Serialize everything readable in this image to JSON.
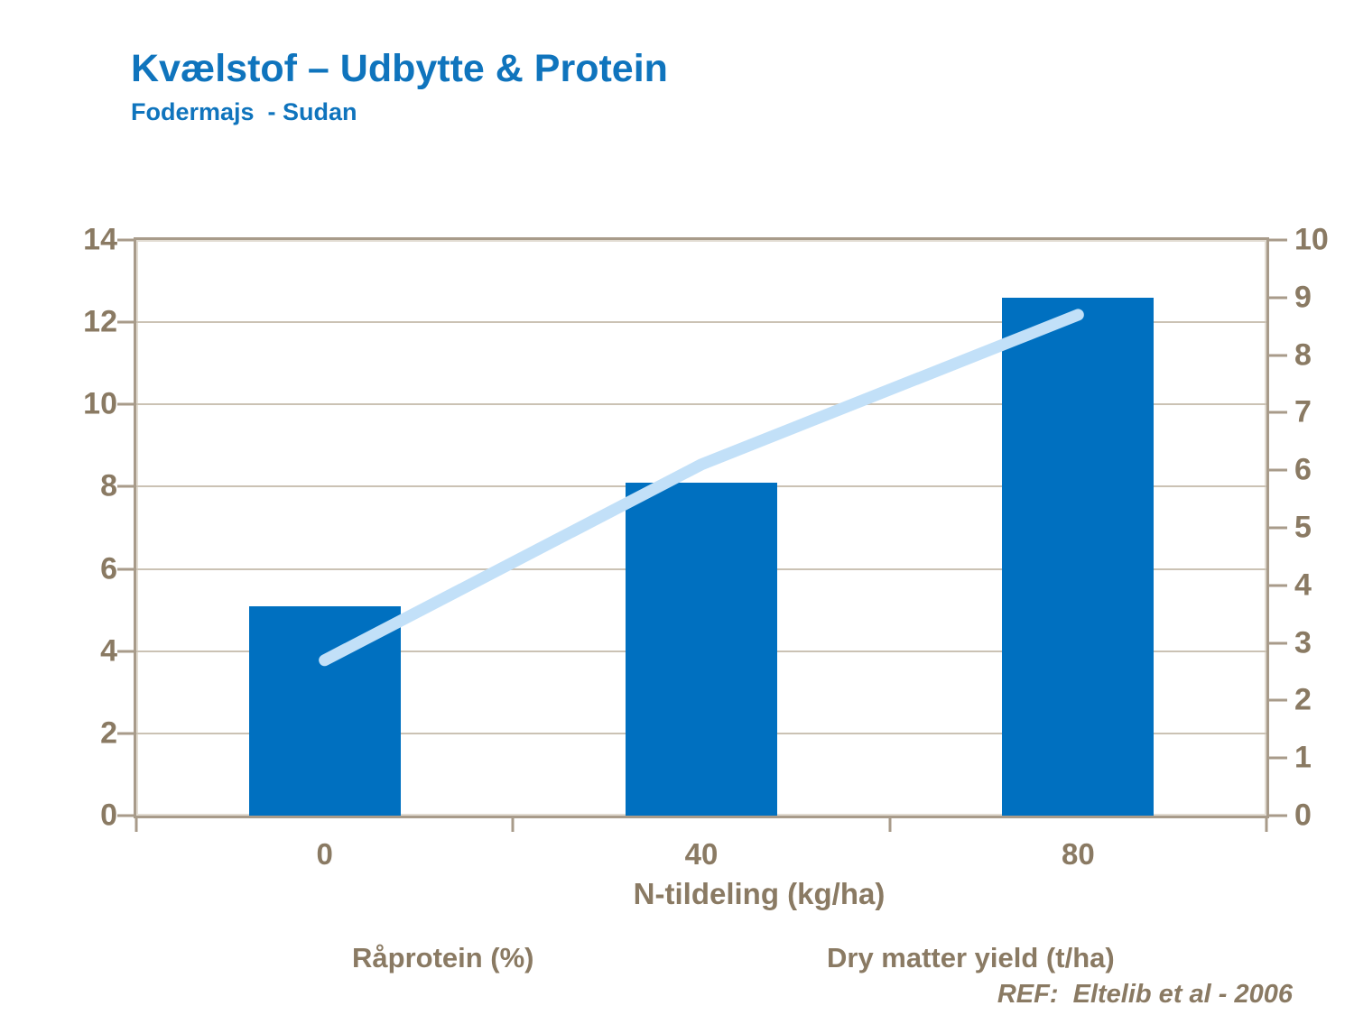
{
  "header": {
    "title": "Kvælstof – Udbytte & Protein",
    "subtitle": "Fodermajs  - Sudan"
  },
  "footer": {
    "reference": "REF:  Eltelib et al - 2006"
  },
  "legend": {
    "items": [
      {
        "label": "Råprotein (%)",
        "swatch": "bar-swatch"
      },
      {
        "label": "Dry matter yield (t/ha)",
        "swatch": "line-swatch"
      }
    ]
  },
  "chart_data": {
    "type": "bar",
    "title": "Kvælstof – Udbytte & Protein",
    "subtitle": "Fodermajs - Sudan",
    "categories": [
      "0",
      "40",
      "80"
    ],
    "xlabel": "N-tildeling (kg/ha)",
    "series": [
      {
        "name": "Råprotein (%)",
        "type": "bar",
        "axis": "left",
        "values": [
          5.1,
          8.1,
          12.6
        ],
        "color": "#0070C0"
      },
      {
        "name": "Dry matter yield (t/ha)",
        "type": "line",
        "axis": "right",
        "values": [
          2.7,
          6.1,
          8.7
        ],
        "color": "#C2E0F8"
      }
    ],
    "left_axis": {
      "min": 0,
      "max": 14,
      "ticks": [
        0,
        2,
        4,
        6,
        8,
        10,
        12,
        14
      ]
    },
    "right_axis": {
      "min": 0,
      "max": 10,
      "ticks": [
        0,
        1,
        2,
        3,
        4,
        5,
        6,
        7,
        8,
        9,
        10
      ]
    },
    "grid": "horizontal",
    "legend_position": "bottom"
  },
  "colors": {
    "title_blue": "#0F74BD",
    "bar_blue": "#0070C0",
    "line_blue": "#C2E0F8",
    "axis_brown": "#8A7A63",
    "grid": "#CBC2B4",
    "frame": "#A89B8A",
    "frame_inner": "#E2DCD2"
  }
}
